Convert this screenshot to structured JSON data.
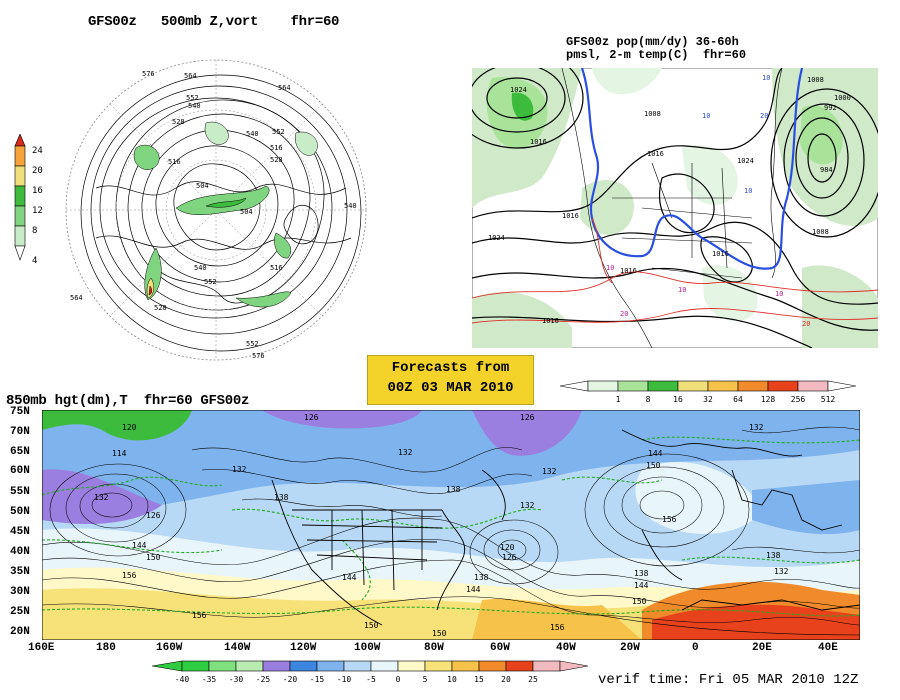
{
  "polar_panel": {
    "title": "GFS00z   500mb Z,vort    fhr=60",
    "colorbar_ticks": [
      "24",
      "20",
      "16",
      "12",
      "8",
      "4"
    ],
    "colorbar_colors": [
      "#d62a1d",
      "#f6a33a",
      "#f1e07a",
      "#3dbb3d",
      "#7fd47f",
      "#c8ecc8"
    ],
    "contour_labels": [
      "576",
      "564",
      "552",
      "540",
      "528",
      "516",
      "504",
      "564",
      "552",
      "540",
      "528",
      "516",
      "540",
      "552",
      "564",
      "576",
      "552",
      "540",
      "528",
      "504",
      "516"
    ]
  },
  "na_panel": {
    "title_line1": "GFS00z pop(mm/dy) 36-60h",
    "title_line2": "pmsl, 2-m temp(C)  fhr=60",
    "isobar_labels": [
      "1016",
      "1024",
      "1016",
      "1008",
      "1016",
      "1024",
      "1016",
      "1016",
      "1008",
      "1000",
      "992",
      "984",
      "1008",
      "1016",
      "1024"
    ],
    "temp_labels": [
      "10",
      "10",
      "20",
      "10",
      "10",
      "10",
      "20",
      "10",
      "20"
    ]
  },
  "banner": {
    "line1": "Forecasts from",
    "line2": "00Z 03 MAR 2010"
  },
  "pop_colorbar": {
    "ticks": [
      "1",
      "8",
      "16",
      "32",
      "64",
      "128",
      "256",
      "512"
    ],
    "colors": [
      "#e4f5e4",
      "#a9e39a",
      "#3dbb3d",
      "#f1e07a",
      "#f6c24a",
      "#f08a2a",
      "#e8421d",
      "#f3b9c0"
    ]
  },
  "bottom_panel": {
    "title": "850mb hgt(dm),T  fhr=60 GFS00z",
    "lat_labels": [
      "75N",
      "70N",
      "65N",
      "60N",
      "55N",
      "50N",
      "45N",
      "40N",
      "35N",
      "30N",
      "25N",
      "20N"
    ],
    "lon_labels": [
      "160E",
      "180",
      "160W",
      "140W",
      "120W",
      "100W",
      "80W",
      "60W",
      "40W",
      "20W",
      "0",
      "20E",
      "40E"
    ],
    "height_labels": [
      "120",
      "114",
      "132",
      "126",
      "132",
      "144",
      "150",
      "156",
      "126",
      "132",
      "138",
      "132",
      "144",
      "156",
      "138",
      "126",
      "132",
      "120",
      "126",
      "138",
      "144",
      "150",
      "150",
      "156",
      "132",
      "144",
      "150",
      "156",
      "138",
      "144",
      "150",
      "138",
      "132"
    ],
    "temp_colorbar": {
      "ticks": [
        "-40",
        "-35",
        "-30",
        "-25",
        "-20",
        "-15",
        "-10",
        "-5",
        "0",
        "5",
        "10",
        "15",
        "20",
        "25"
      ],
      "colors": [
        "#2ecc40",
        "#7ee07e",
        "#b9ecb0",
        "#9b7fe0",
        "#3d86e0",
        "#7fb3ee",
        "#b8d9f5",
        "#e8f6fb",
        "#fff8c8",
        "#f7e27a",
        "#f6c24a",
        "#f08a2a",
        "#e8421d",
        "#f3b9c0"
      ]
    },
    "verif_time": "verif time: Fri 05 MAR 2010 12Z"
  }
}
